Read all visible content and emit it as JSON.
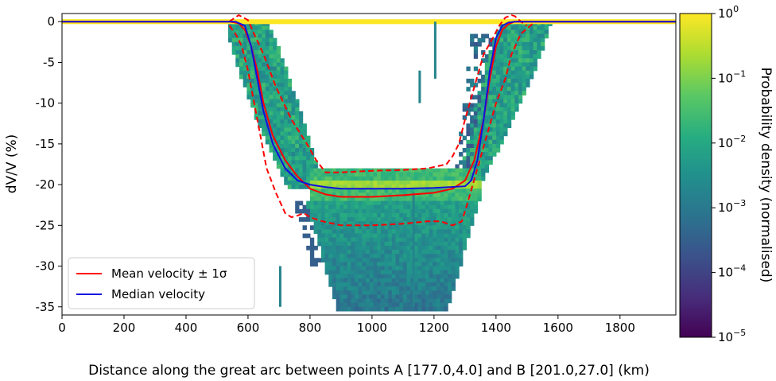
{
  "chart_data": {
    "type": "heatmap",
    "xlabel": "Distance along the great arc between points A [177.0,4.0] and B [201.0,27.0] (km)",
    "ylabel": "dV/V (%)",
    "xlim": [
      0,
      1980
    ],
    "ylim": [
      -36,
      1
    ],
    "x_ticks": [
      0,
      200,
      400,
      600,
      800,
      1000,
      1200,
      1400,
      1600,
      1800
    ],
    "y_ticks": [
      0,
      -5,
      -10,
      -15,
      -20,
      -25,
      -30,
      -35
    ],
    "colorbar": {
      "label": "Probability density (normalised)",
      "scale": "log",
      "range": [
        1e-05,
        1
      ],
      "ticks": [
        {
          "base": "10",
          "exp": "0",
          "value": 1
        },
        {
          "base": "10",
          "exp": "−1",
          "value": 0.1
        },
        {
          "base": "10",
          "exp": "−2",
          "value": 0.01
        },
        {
          "base": "10",
          "exp": "−3",
          "value": 0.001
        },
        {
          "base": "10",
          "exp": "−4",
          "value": 0.0001
        },
        {
          "base": "10",
          "exp": "−5",
          "value": 1e-05
        }
      ],
      "colormap": "viridis"
    },
    "series": [
      {
        "name": "Mean velocity ± 1σ",
        "color": "#ff0000",
        "style": "solid",
        "x": [
          0,
          540,
          570,
          590,
          610,
          630,
          650,
          680,
          720,
          760,
          800,
          850,
          900,
          1000,
          1100,
          1200,
          1260,
          1300,
          1330,
          1360,
          1380,
          1400,
          1420,
          1440,
          1460,
          1480,
          1980
        ],
        "y": [
          0,
          0,
          -0.2,
          -1,
          -3,
          -6,
          -10,
          -14,
          -17,
          -19,
          -20.5,
          -21.2,
          -21.5,
          -21.5,
          -21.3,
          -21,
          -20.5,
          -19.5,
          -17,
          -12,
          -7,
          -3,
          -1,
          -0.3,
          0,
          0,
          0
        ]
      },
      {
        "name": "Mean + 1σ",
        "color": "#ff0000",
        "style": "dashed",
        "x": [
          540,
          570,
          600,
          620,
          650,
          690,
          740,
          790,
          820,
          850,
          900,
          1000,
          1100,
          1180,
          1240,
          1260,
          1280,
          1300,
          1330,
          1360,
          1390,
          1410,
          1430,
          1450,
          1460,
          1480,
          1500
        ],
        "y": [
          0,
          0.8,
          0.2,
          -1.5,
          -4,
          -8,
          -12,
          -15,
          -17,
          -18.5,
          -18.5,
          -18.3,
          -18.2,
          -18,
          -17.5,
          -16.5,
          -15,
          -12,
          -8,
          -4,
          -2,
          -0.5,
          0.5,
          0.8,
          0.7,
          0,
          -0.5
        ]
      },
      {
        "name": "Mean − 1σ",
        "color": "#ff0000",
        "style": "dashed",
        "x": [
          540,
          560,
          580,
          600,
          620,
          640,
          660,
          690,
          720,
          740,
          760,
          780,
          800,
          840,
          900,
          1000,
          1100,
          1180,
          1220,
          1260,
          1290,
          1310,
          1340,
          1370,
          1400,
          1430,
          1450,
          1480,
          1520
        ],
        "y": [
          -0.5,
          -1.5,
          -3,
          -6,
          -10,
          -14,
          -18,
          -21,
          -23.5,
          -24,
          -23.8,
          -23.5,
          -24,
          -24.5,
          -25,
          -25,
          -24.8,
          -24.5,
          -24.5,
          -25,
          -24.5,
          -22,
          -18,
          -14,
          -10,
          -7,
          -4,
          -1.5,
          -0.2
        ]
      },
      {
        "name": "Median velocity",
        "color": "#1010dd",
        "style": "solid",
        "x": [
          0,
          560,
          590,
          610,
          630,
          650,
          680,
          720,
          760,
          800,
          850,
          900,
          1000,
          1100,
          1200,
          1300,
          1320,
          1340,
          1360,
          1380,
          1400,
          1420,
          1440,
          1460,
          1980
        ],
        "y": [
          0,
          0,
          -0.5,
          -3,
          -7,
          -11,
          -15,
          -18,
          -19.5,
          -20,
          -20.3,
          -20.5,
          -20.5,
          -20.5,
          -20.4,
          -20.2,
          -19.5,
          -17,
          -12,
          -6,
          -2,
          -0.5,
          -0.1,
          0,
          0
        ]
      }
    ],
    "legend": {
      "position": "lower left",
      "entries": [
        {
          "label": "Mean velocity ± 1σ",
          "color": "#ff0000"
        },
        {
          "label": "Median velocity",
          "color": "#1010dd"
        }
      ]
    },
    "heatmap_regions": {
      "baseline_band": {
        "y": [
          0.3,
          -0.3
        ],
        "x": [
          0,
          1980
        ],
        "level": 1.0
      },
      "plateau": {
        "x": [
          800,
          1350
        ],
        "y": [
          -18.5,
          -21
        ],
        "level": 0.3
      },
      "left_limb": {
        "x_top": [
          540,
          660
        ],
        "x_bottom": [
          760,
          840
        ],
        "y": [
          0,
          -20
        ]
      },
      "right_limb": {
        "x_top": [
          1400,
          1560
        ],
        "x_bottom": [
          1260,
          1340
        ],
        "y": [
          0,
          -20
        ]
      },
      "deep_basin": {
        "x": [
          820,
          1250
        ],
        "y": [
          -21,
          -35
        ]
      }
    }
  }
}
